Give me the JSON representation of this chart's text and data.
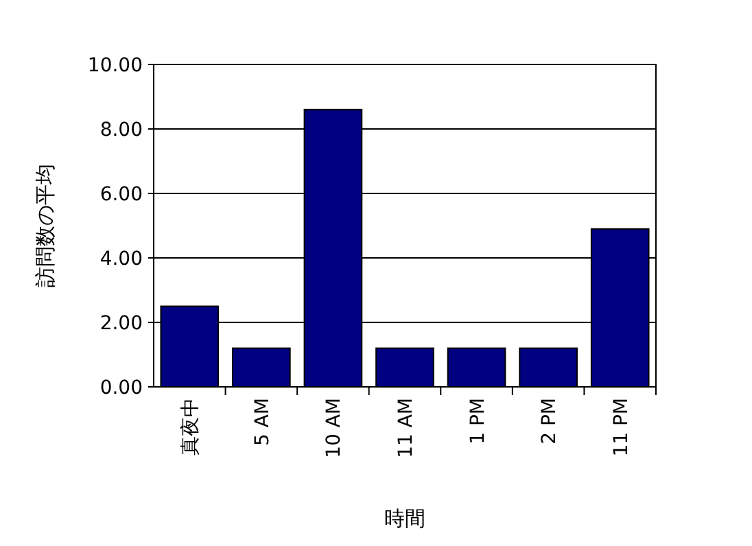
{
  "chart_data": {
    "type": "bar",
    "xlabel": "時間",
    "ylabel": "訪問数の平均",
    "categories": [
      "真夜中",
      "5 AM",
      "10 AM",
      "11 AM",
      "1 PM",
      "2 PM",
      "11 PM"
    ],
    "values": [
      2.5,
      1.2,
      8.6,
      1.2,
      1.2,
      1.2,
      4.9
    ],
    "color": "#000080",
    "ylim": [
      0,
      10
    ],
    "yticks": [
      {
        "value": 0,
        "label": "0.00"
      },
      {
        "value": 2,
        "label": "2.00"
      },
      {
        "value": 4,
        "label": "4.00"
      },
      {
        "value": 6,
        "label": "6.00"
      },
      {
        "value": 8,
        "label": "8.00"
      },
      {
        "value": 10,
        "label": "10.00"
      }
    ],
    "grid": "y"
  }
}
